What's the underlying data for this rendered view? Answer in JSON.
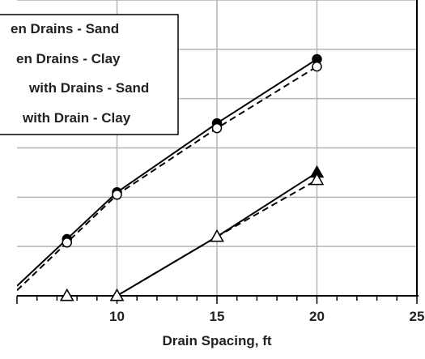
{
  "chart_data": {
    "type": "line",
    "title": "",
    "xlabel": "Drain Spacing, ft",
    "ylabel": "",
    "xlim": [
      5,
      25
    ],
    "ylim": [
      0,
      6
    ],
    "x_ticks": [
      10,
      15,
      20,
      25
    ],
    "x_tick_labels": [
      "10",
      "15",
      "20",
      "25"
    ],
    "grid": true,
    "legend_position": "top-left",
    "series": [
      {
        "name": "en Drains - Sand",
        "line_style": "solid",
        "marker": "filled-circle",
        "color": "#000000",
        "x": [
          7.5,
          10,
          15,
          20
        ],
        "y": [
          1.15,
          2.1,
          3.5,
          4.8
        ]
      },
      {
        "name": "en Drains - Clay",
        "line_style": "dashed",
        "marker": "open-circle",
        "color": "#000000",
        "x": [
          7.5,
          10,
          15,
          20
        ],
        "y": [
          1.08,
          2.05,
          3.4,
          4.65
        ]
      },
      {
        "name": "with Drains - Sand",
        "line_style": "solid",
        "marker": "filled-triangle",
        "color": "#000000",
        "x": [
          7.5,
          10,
          15,
          20
        ],
        "y": [
          0,
          0,
          1.2,
          2.5
        ]
      },
      {
        "name": "with Drain - Clay",
        "line_style": "dashed",
        "marker": "open-triangle",
        "color": "#000000",
        "x": [
          7.5,
          10,
          15,
          20
        ],
        "y": [
          0,
          0,
          1.2,
          2.35
        ]
      }
    ]
  }
}
